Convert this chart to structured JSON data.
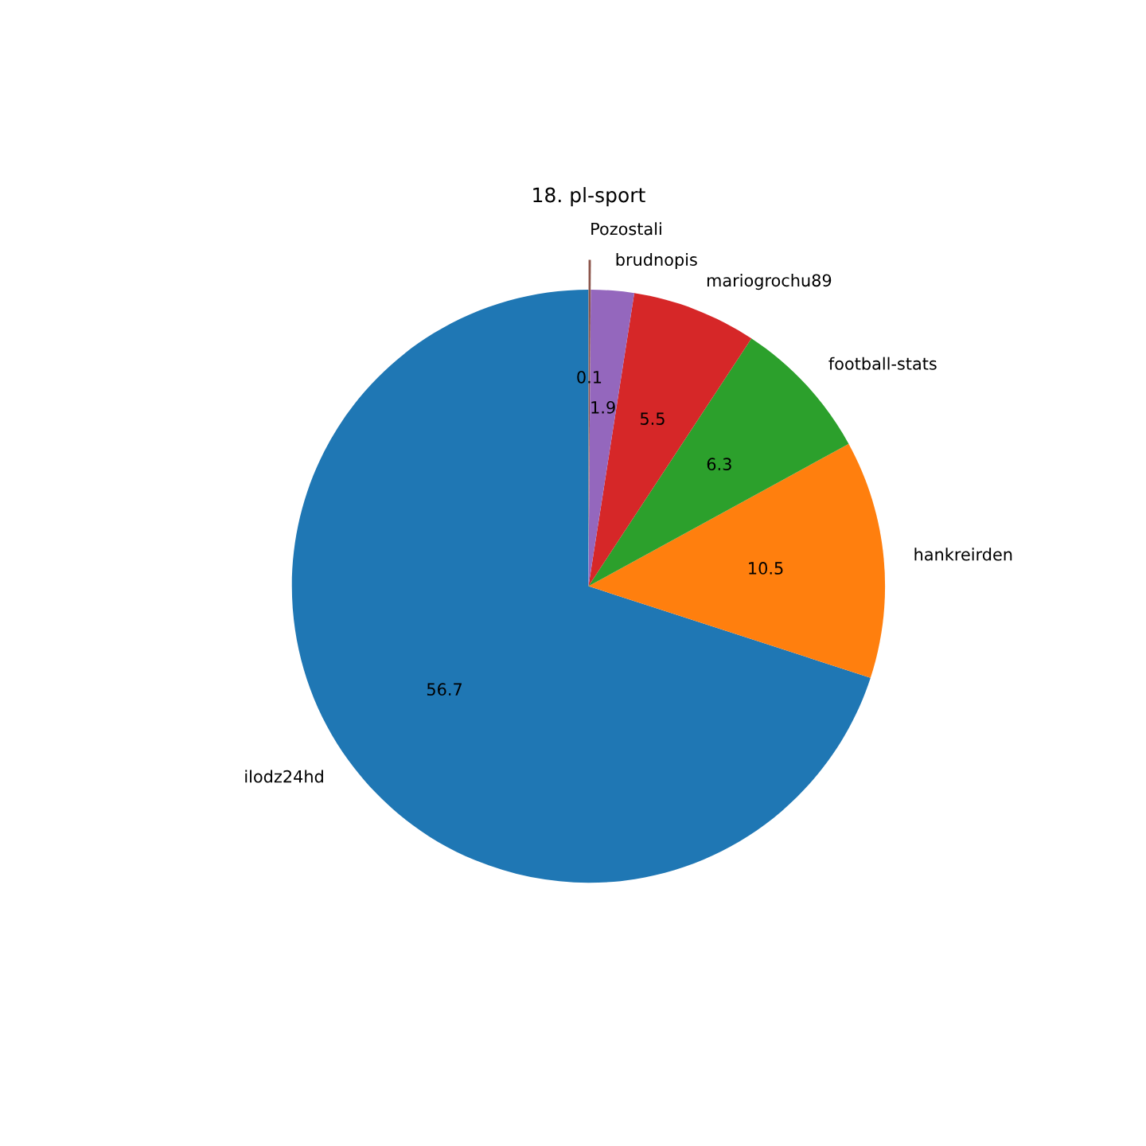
{
  "chart_data": {
    "type": "pie",
    "title": "18. pl-sport",
    "categories": [
      "ilodz24hd",
      "hankreirden",
      "football-stats",
      "mariogrochu89",
      "brudnopis",
      "Pozostali"
    ],
    "values": [
      56.7,
      10.5,
      6.3,
      5.5,
      1.9,
      0.1
    ],
    "colors": [
      "#1f77b4",
      "#ff7f0e",
      "#2ca02c",
      "#d62728",
      "#9467bd",
      "#8c564b"
    ],
    "data_labels": true
  }
}
